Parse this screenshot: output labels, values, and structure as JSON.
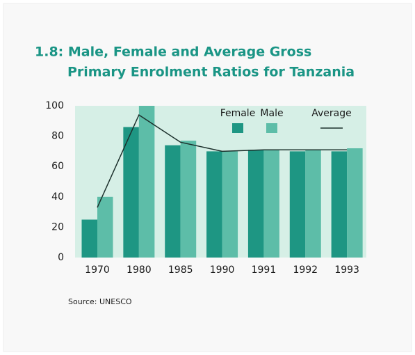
{
  "chart_data": {
    "type": "bar",
    "title": [
      "1.8: Male, Female and Average Gross",
      "Primary Enrolment Ratios for Tanzania"
    ],
    "categories": [
      "1970",
      "1980",
      "1985",
      "1990",
      "1991",
      "1992",
      "1993"
    ],
    "series": [
      {
        "name": "Female",
        "color": "#1e9683",
        "values": [
          25,
          86,
          74,
          70,
          71,
          70,
          70
        ]
      },
      {
        "name": "Male",
        "color": "#5dbda8",
        "values": [
          40,
          100,
          77,
          70,
          71,
          71,
          72
        ]
      },
      {
        "name": "Average",
        "type": "line",
        "color": "#1c302c",
        "values": [
          33,
          94,
          76,
          70,
          71,
          71,
          71
        ]
      }
    ],
    "ylim": [
      0,
      100
    ],
    "yticks": [
      0,
      20,
      40,
      60,
      80,
      100
    ],
    "source": "Source: UNESCO"
  }
}
